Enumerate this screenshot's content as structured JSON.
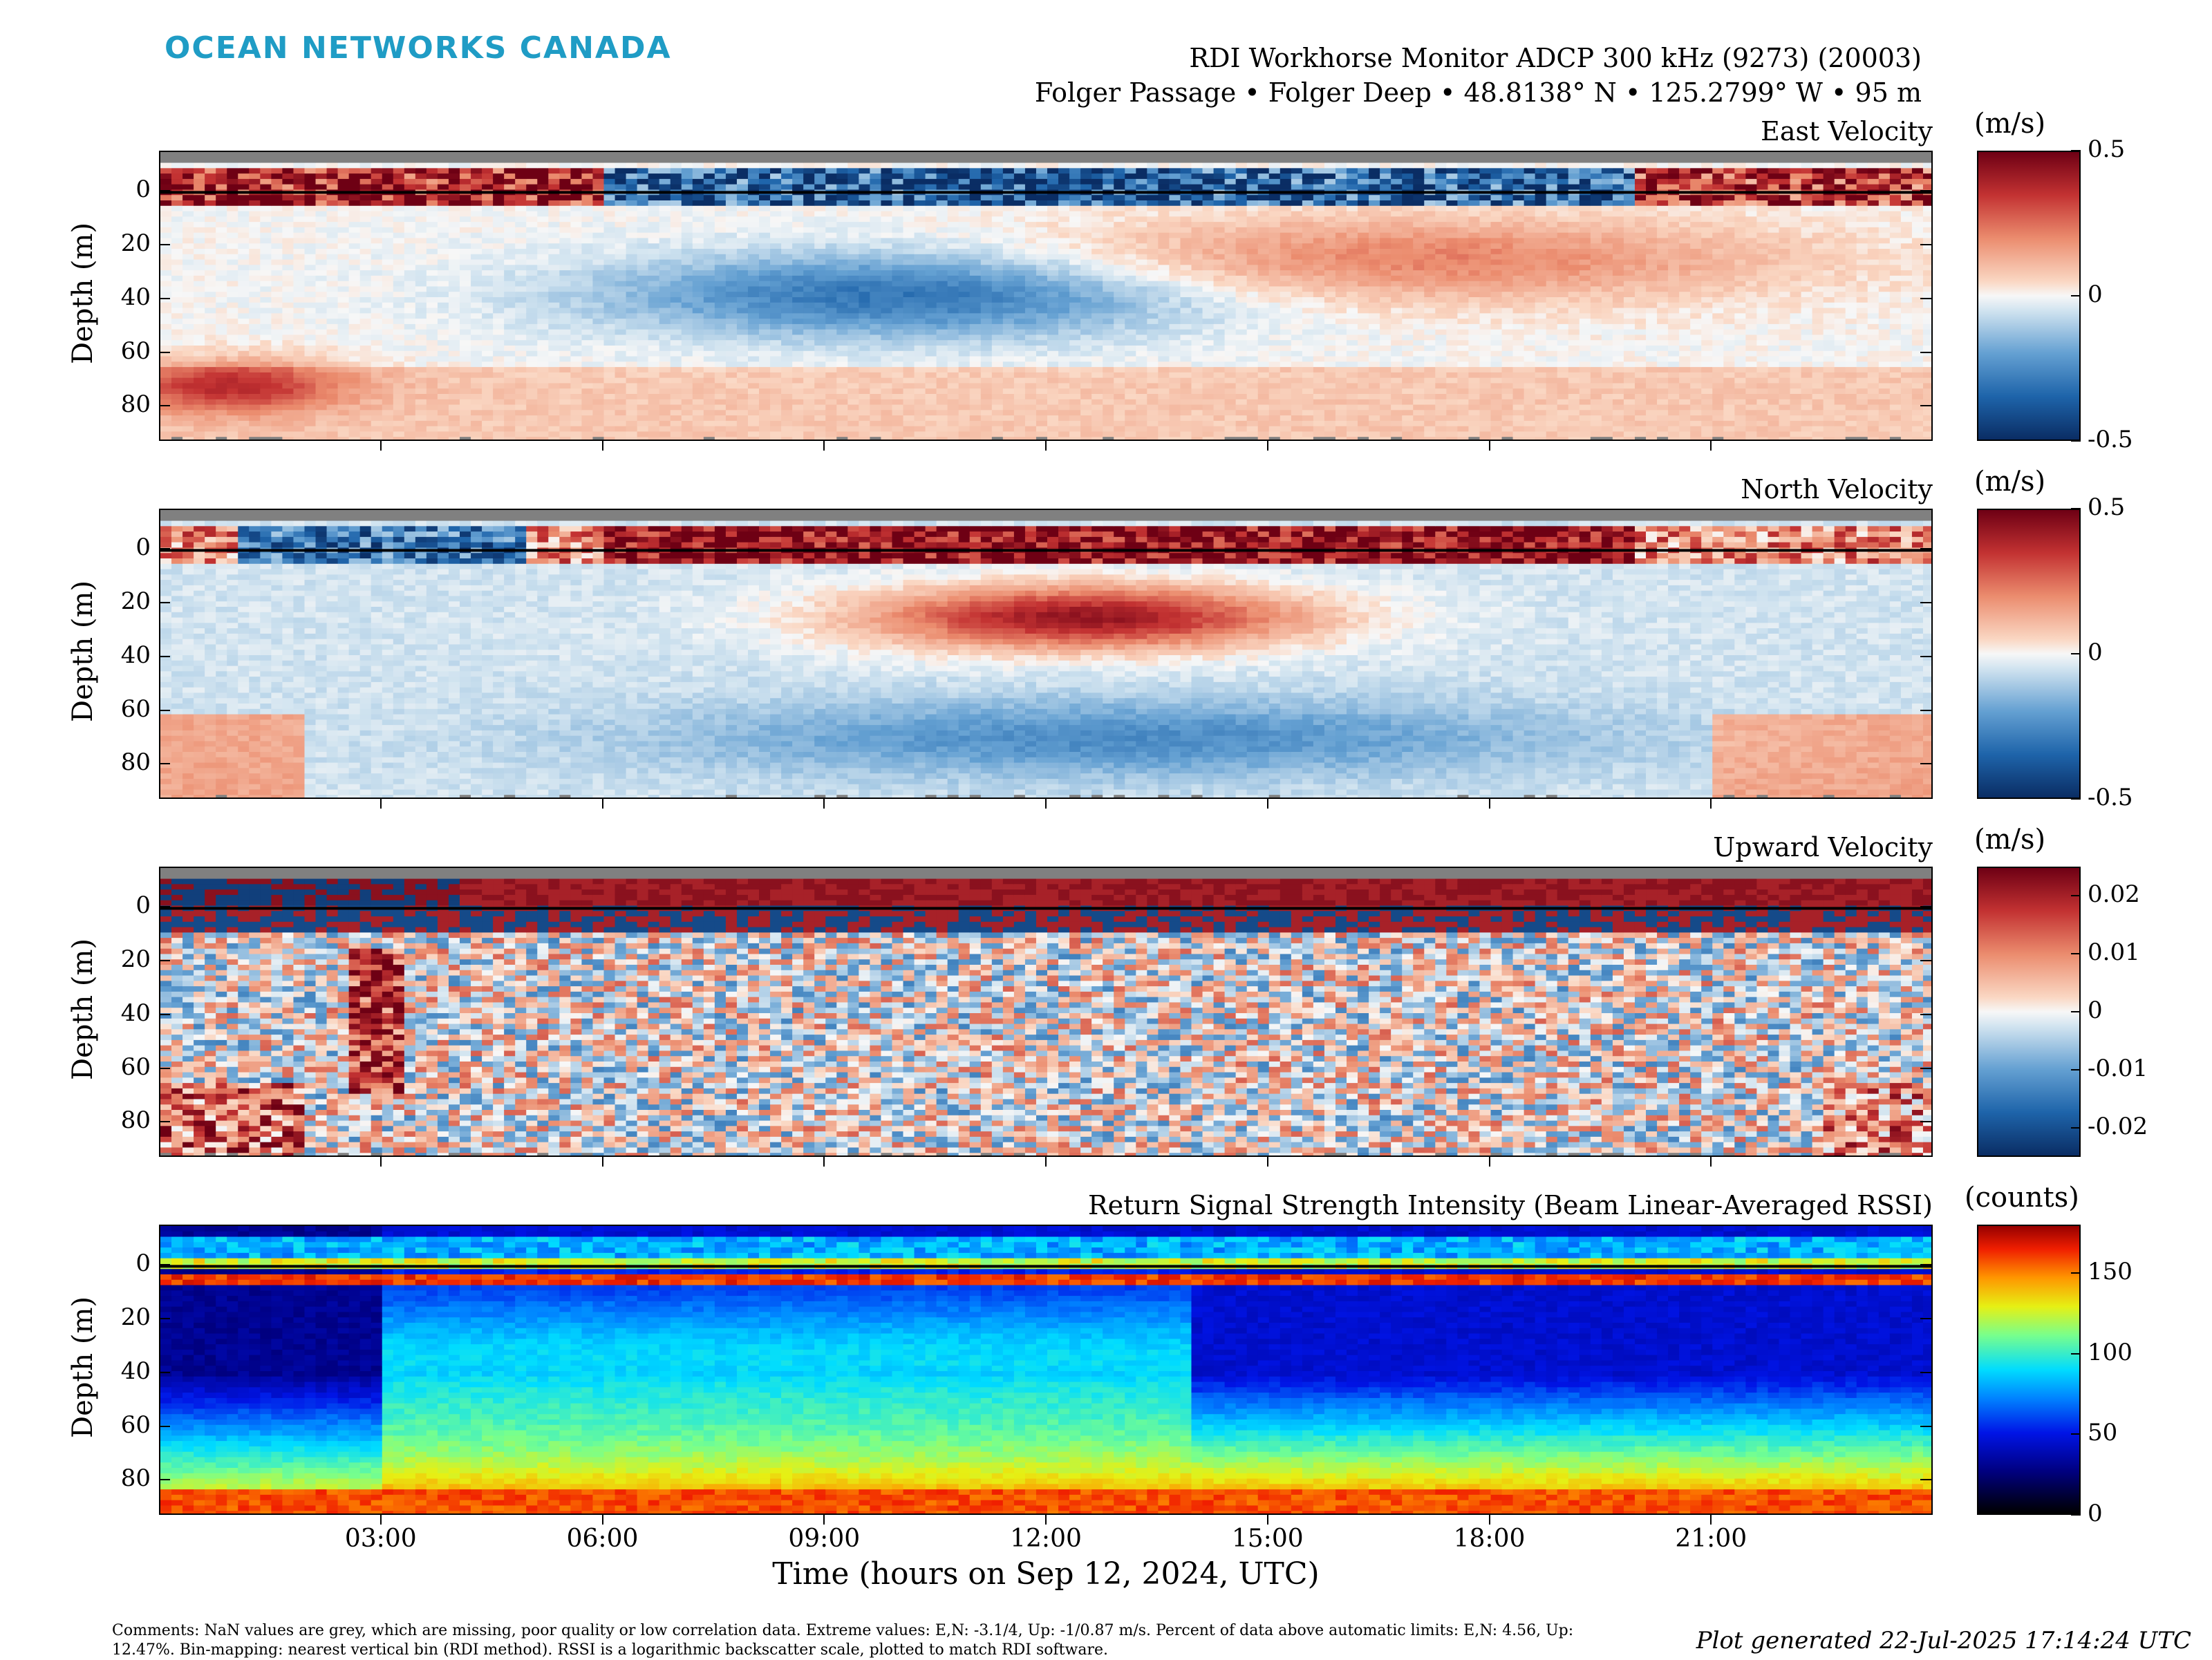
{
  "header": {
    "logo_text": "OCEAN NETWORKS CANADA",
    "instrument": "RDI Workhorse Monitor ADCP 300 kHz (9273) (20003)",
    "location": "Folger Passage • Folger Deep • 48.8138° N • 125.2799° W • 95 m"
  },
  "chart_data": [
    {
      "type": "heatmap",
      "title": "East Velocity",
      "ylabel": "Depth (m)",
      "ylim": [
        93,
        -15
      ],
      "yticks": [
        "0",
        "20",
        "40",
        "60",
        "80"
      ],
      "colorbar_unit": "(m/s)",
      "colorbar_range": [
        -0.5,
        0.5
      ],
      "colorbar_ticks": [
        "0.5",
        "0",
        "-0.5"
      ],
      "colormap": "diverging-blue-white-red",
      "grid": false
    },
    {
      "type": "heatmap",
      "title": "North Velocity",
      "ylabel": "Depth (m)",
      "ylim": [
        93,
        -15
      ],
      "yticks": [
        "0",
        "20",
        "40",
        "60",
        "80"
      ],
      "colorbar_unit": "(m/s)",
      "colorbar_range": [
        -0.5,
        0.5
      ],
      "colorbar_ticks": [
        "0.5",
        "0",
        "-0.5"
      ],
      "colormap": "diverging-blue-white-red",
      "grid": false
    },
    {
      "type": "heatmap",
      "title": "Upward Velocity",
      "ylabel": "Depth (m)",
      "ylim": [
        93,
        -15
      ],
      "yticks": [
        "0",
        "20",
        "40",
        "60",
        "80"
      ],
      "colorbar_unit": "(m/s)",
      "colorbar_range": [
        -0.025,
        0.025
      ],
      "colorbar_ticks": [
        "0.02",
        "0.01",
        "0",
        "-0.01",
        "-0.02"
      ],
      "colormap": "diverging-blue-white-red",
      "grid": false
    },
    {
      "type": "heatmap",
      "title": "Return Signal Strength Intensity (Beam Linear-Averaged RSSI)",
      "ylabel": "Depth (m)",
      "ylim": [
        93,
        -15
      ],
      "yticks": [
        "0",
        "20",
        "40",
        "60",
        "80"
      ],
      "colorbar_unit": "(counts)",
      "colorbar_range": [
        0,
        180
      ],
      "colorbar_ticks": [
        "150",
        "100",
        "50",
        "0"
      ],
      "colormap": "jet",
      "grid": false
    }
  ],
  "x_axis": {
    "label": "Time (hours on Sep 12, 2024, UTC)",
    "range_hours": [
      0,
      24
    ],
    "ticks": [
      "03:00",
      "06:00",
      "09:00",
      "12:00",
      "15:00",
      "18:00",
      "21:00"
    ],
    "tick_hours": [
      3,
      6,
      9,
      12,
      15,
      18,
      21
    ]
  },
  "footer": {
    "comments": "Comments: NaN values are grey, which are missing, poor quality or low correlation data. Extreme values: E,N: -3.1/4, Up: -1/0.87 m/s. Percent of data above automatic limits: E,N: 4.56, Up: 12.47%. Bin-mapping: nearest vertical bin (RDI method). RSSI is a logarithmic backscatter scale, plotted to match RDI software.",
    "generated": "Plot generated 22-Jul-2025 17:14:24 UTC"
  },
  "colors": {
    "logo": "#1f9cc5",
    "nan_grey": "#808080"
  }
}
